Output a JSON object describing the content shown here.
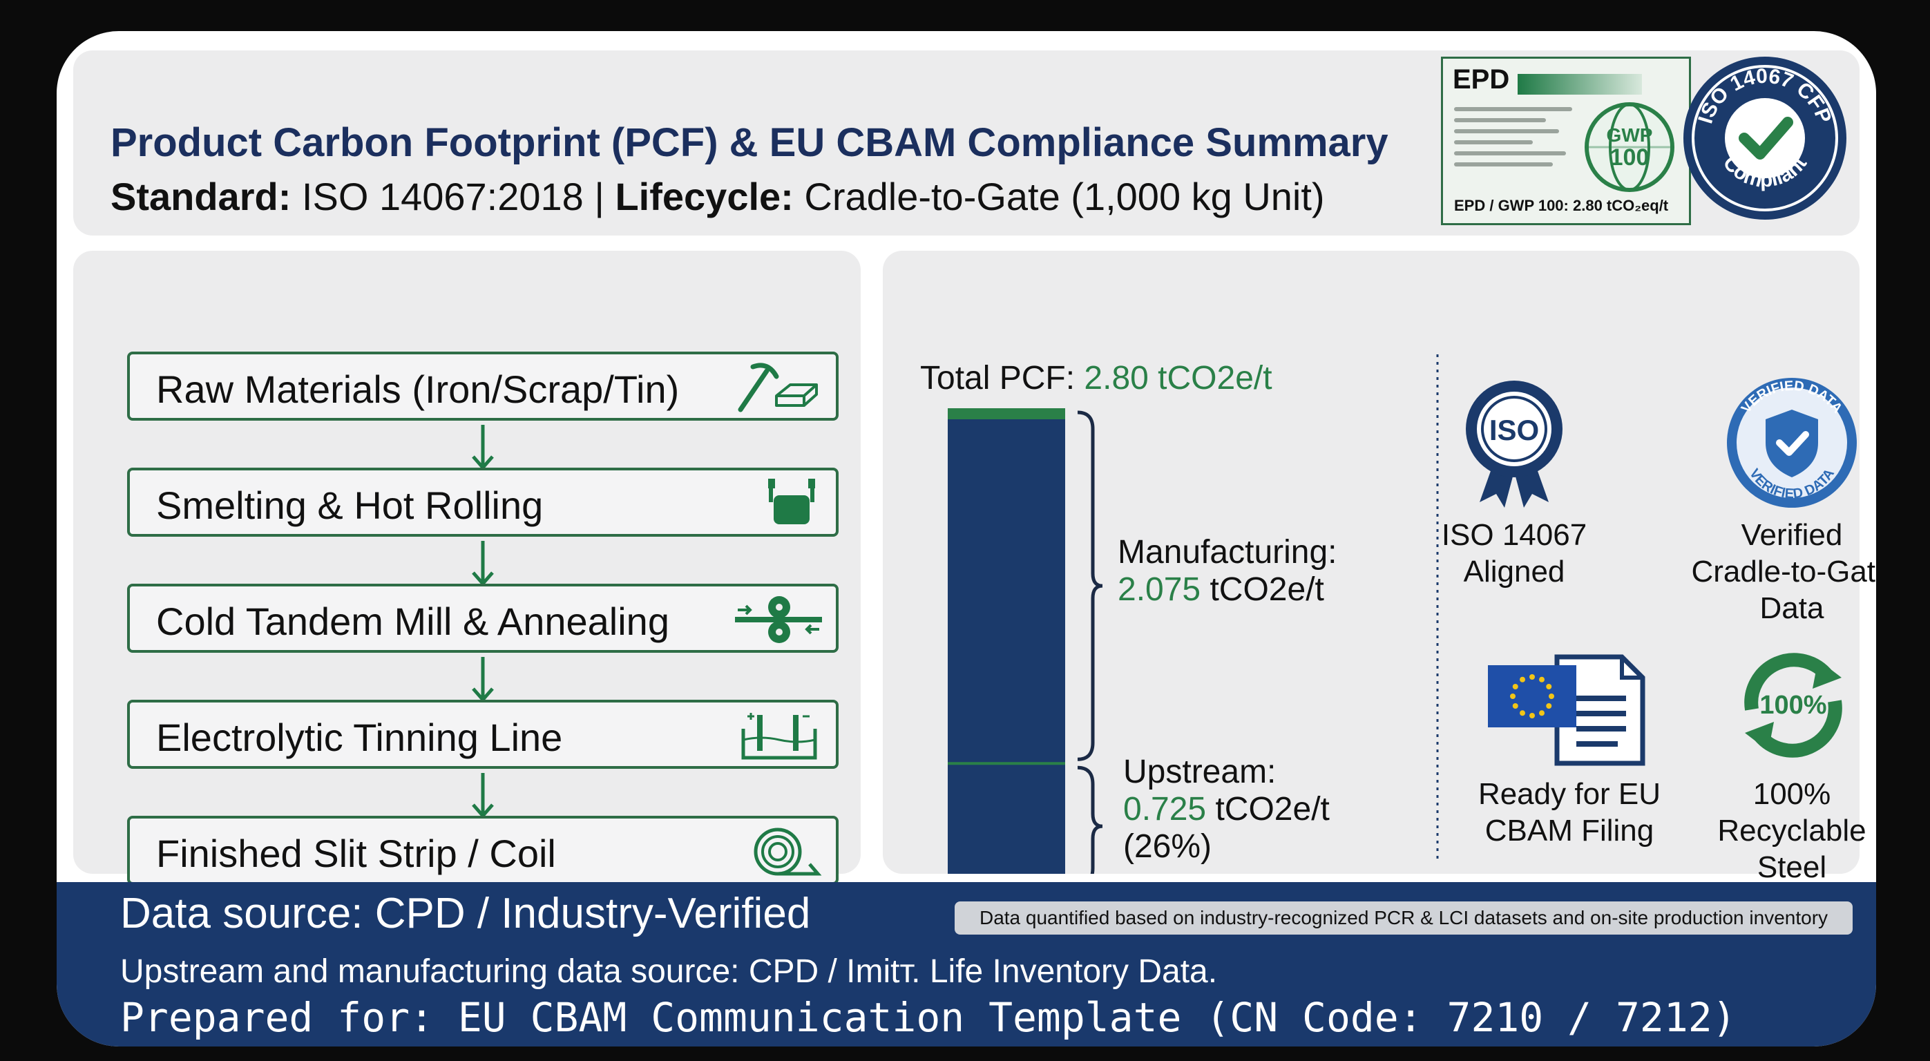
{
  "header": {
    "title": "Product Carbon Footprint (PCF) & EU CBAM Compliance Summary",
    "standard_label": "Standard:",
    "standard_value": " ISO 14067:2018 | ",
    "lifecycle_label": "Lifecycle:",
    "lifecycle_value": " Cradle-to-Gate (1,000 kg Unit)"
  },
  "epd": {
    "title": "EPD",
    "gwp_top": "GWP",
    "gwp_bottom": "100",
    "footer": "EPD / GWP 100: 2.80 tCO₂eq/t"
  },
  "seal": {
    "text_top": "ISO 14067 CFP",
    "text_bottom": "Compliant"
  },
  "process": {
    "steps": [
      {
        "label": "Raw Materials (Iron/Scrap/Tin)",
        "icon": "pickaxe-ingot-icon"
      },
      {
        "label": "Smelting & Hot Rolling",
        "icon": "ladle-icon"
      },
      {
        "label": "Cold Tandem Mill & Annealing",
        "icon": "rolling-mill-icon"
      },
      {
        "label": "Electrolytic Tinning Line",
        "icon": "electrolysis-tank-icon"
      },
      {
        "label": "Finished Slit Strip / Coil",
        "icon": "coil-icon"
      }
    ]
  },
  "chart_data": {
    "type": "bar",
    "stacked": true,
    "unit": "tCO2e/t",
    "total": 2.8,
    "total_label": "Total PCF: ",
    "total_value_text": "2.80 tCO2e/t",
    "series": [
      {
        "name": "Upstream",
        "value": 0.725,
        "value_text": "0.725",
        "unit_text": " tCO2e/t",
        "share_text": "(26%)",
        "color": "#1b3a6b"
      },
      {
        "name": "Manufacturing",
        "value": 2.075,
        "value_text": "2.075",
        "unit_text": " tCO2e/t",
        "color": "#1b3a6b"
      }
    ],
    "upstream_label": "Upstream:",
    "manufacturing_label": "Manufacturing:",
    "cap_color": "#2a8048"
  },
  "badges": [
    {
      "icon": "iso-ribbon-icon",
      "emblem": "ISO",
      "lines": [
        "ISO 14067",
        "Aligned"
      ]
    },
    {
      "icon": "verified-data-shield-icon",
      "emblem_top": "VERIFIED DATA",
      "emblem_bottom": "VERIFIED DATA",
      "lines": [
        "Verified",
        "Cradle-to-Gate",
        "Data"
      ]
    },
    {
      "icon": "eu-flag-document-icon",
      "lines": [
        "Ready for EU",
        "CBAM Filing"
      ]
    },
    {
      "icon": "recycle-icon",
      "emblem": "100%",
      "lines": [
        "100%",
        "Recyclable",
        "Steel"
      ]
    }
  ],
  "footer": {
    "line1": "Data source: CPD / Industry-Verified",
    "line2": "Upstream and manufacturing data source: CPD / Imitт. Life Inventory Data.",
    "line3": "Prepared for: EU CBAM Communication Template (CN Code: 7210 / 7212)",
    "badge": "Data quantified based on industry-recognized PCR & LCI datasets and on-site production inventory"
  },
  "colors": {
    "navy": "#1a396c",
    "green": "#2e6d46",
    "accent_green": "#2a8048"
  }
}
